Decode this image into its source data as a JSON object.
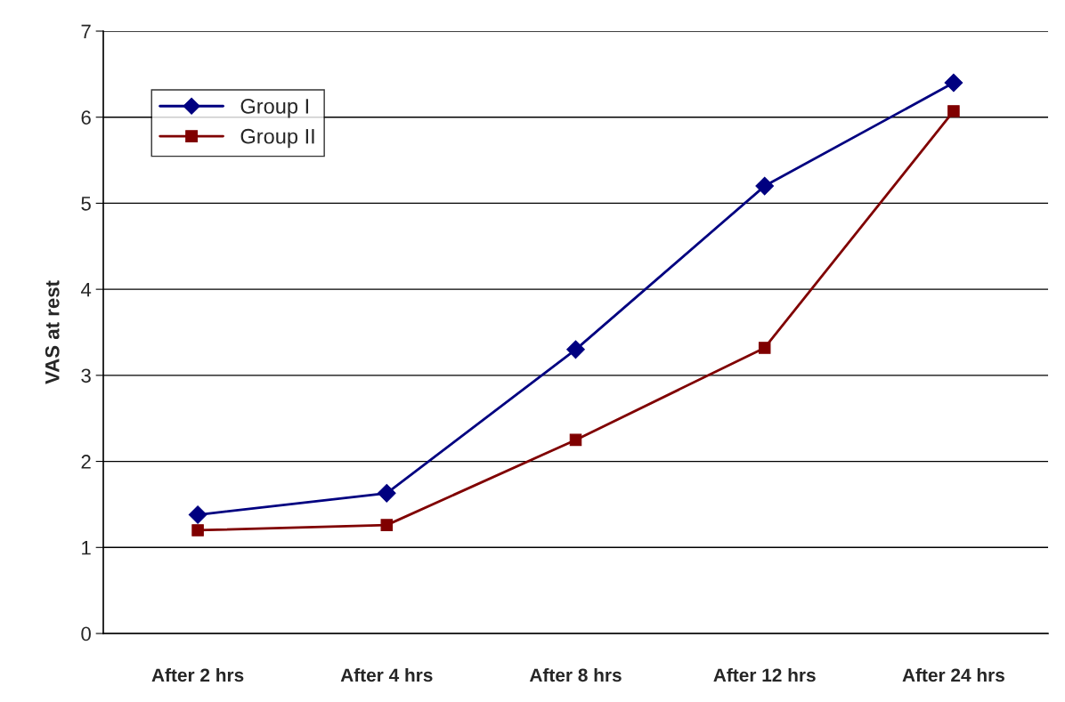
{
  "chart_data": {
    "type": "line",
    "ylabel": "VAS at rest",
    "categories": [
      "After 2 hrs",
      "After 4 hrs",
      "After 8 hrs",
      "After 12 hrs",
      "After 24 hrs"
    ],
    "series": [
      {
        "name": "Group I",
        "color": "#000080",
        "marker": "diamond",
        "values": [
          1.38,
          1.63,
          3.3,
          5.2,
          6.4
        ]
      },
      {
        "name": "Group II",
        "color": "#800000",
        "marker": "square",
        "values": [
          1.2,
          1.26,
          2.25,
          3.32,
          6.07
        ]
      }
    ],
    "ylim": [
      0,
      7
    ],
    "yticks": [
      0,
      1,
      2,
      3,
      4,
      5,
      6,
      7
    ],
    "grid": "y",
    "legend": "top left",
    "line_style": "solid"
  }
}
